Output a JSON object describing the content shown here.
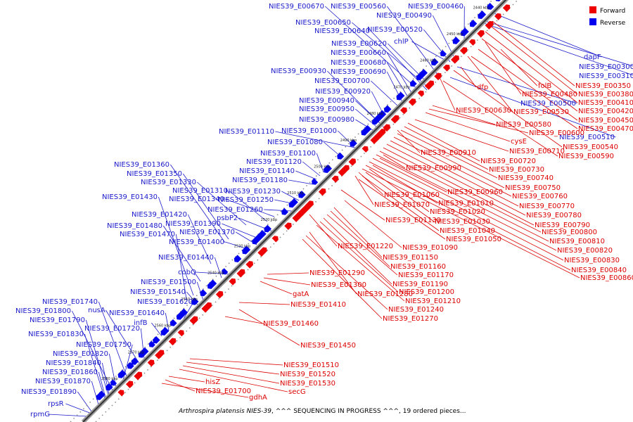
{
  "caption": {
    "organism": "Arthrospira platensis NIES-39",
    "status": ", ^^^ SEQUENCING IN PROGRESS ^^^, 19 ordered pieces..."
  },
  "legend": [
    {
      "label": "Forward",
      "color": "#ee0000"
    },
    {
      "label": "Reverse",
      "color": "#0000ee"
    }
  ],
  "kbp_ticks": [
    "2440 kbp",
    "2450 kbp",
    "2460 kbp",
    "2470 kbp",
    "2480 kbp",
    "2490 kbp",
    "2500 kbp",
    "2510 kbp",
    "2520 kbp",
    "2530 kbp",
    "2540 kbp",
    "2550 kbp",
    "2560 kbp",
    "2570 kbp",
    "2580 kbp"
  ],
  "reverse_labels": [
    "NIES39_E00670",
    "NIES39_E00560",
    "NIES39_E00490",
    "NIES39_E00460",
    "NIES39_E00650",
    "NIES39_E00640",
    "NIES39_E00520",
    "NIES39_E00620",
    "chlP",
    "NIES39_E00660",
    "NIES39_E00680",
    "NIES39_E00930",
    "NIES39_E00690",
    "NIES39_E00700",
    "NIES39_E00920",
    "NIES39_E00940",
    "NIES39_E00950",
    "NIES39_E00980",
    "NIES39_E01110",
    "NIES39_E01000",
    "NIES39_E01080",
    "NIES39_E01100",
    "NIES39_E01360",
    "NIES39_E01120",
    "NIES39_E01350",
    "NIES39_E01140",
    "NIES39_E01180",
    "NIES39_E01330",
    "NIES39_E01310",
    "NIES39_E01230",
    "NIES39_E01430",
    "NIES39_E01340",
    "NIES39_E01250",
    "NIES39_E01260",
    "NIES39_E01420",
    "psbP2",
    "NIES39_E01480",
    "NIES39_E01390",
    "NIES39_E01470",
    "NIES39_E01370",
    "NIES39_E01400",
    "NIES39_E01440",
    "cobQ",
    "NIES39_E01500",
    "NIES39_E01540",
    "NIES39_E01740",
    "NIES39_E01620",
    "nusA",
    "NIES39_E01800",
    "NIES39_E01640",
    "NIES39_E01790",
    "infB",
    "NIES39_E01720",
    "NIES39_E01830",
    "NIES39_E01750",
    "NIES39_E01820",
    "NIES39_E01840",
    "NIES39_E01860",
    "NIES39_E01870",
    "NIES39_E01890",
    "rpsR",
    "rpmG",
    "dapF",
    "NIES39_E00300",
    "NIES39_E00310",
    "NIES39_E00500",
    "NIES39_E00510"
  ],
  "forward_labels": [
    "folB",
    "NIES39_E00350",
    "NIES39_E00380",
    "NIES39_E00480",
    "dfp",
    "NIES39_E00410",
    "NIES39_E00420",
    "NIES39_E00530",
    "NIES39_E00630",
    "NIES39_E00450",
    "NIES39_E00580",
    "NIES39_E00470",
    "cysE",
    "NIES39_E00600",
    "NIES39_E00540",
    "NIES39_E00710",
    "NIES39_E00910",
    "NIES39_E00590",
    "NIES39_E00720",
    "NIES39_E00730",
    "NIES39_E00990",
    "NIES39_E00740",
    "NIES39_E00750",
    "NIES39_E00960",
    "NIES39_E00760",
    "NIES39_E01060",
    "NIES39_E01010",
    "NIES39_E00770",
    "NIES39_E01070",
    "NIES39_E01020",
    "NIES39_E00780",
    "NIES39_E01130",
    "NIES39_E01030",
    "NIES39_E00790",
    "NIES39_E01040",
    "NIES39_E00800",
    "NIES39_E01050",
    "NIES39_E00810",
    "NIES39_E01220",
    "NIES39_E01090",
    "NIES39_E00820",
    "NIES39_E01150",
    "NIES39_E00830",
    "NIES39_E01160",
    "NIES39_E00840",
    "NIES39_E01290",
    "NIES39_E01170",
    "NIES39_E00860",
    "NIES39_E01300",
    "NIES39_E01190",
    "gatA",
    "NIES39_E01280",
    "NIES39_E01200",
    "NIES39_E01410",
    "NIES39_E01210",
    "NIES39_E01240",
    "NIES39_E01270",
    "NIES39_E01460",
    "NIES39_E01450",
    "NIES39_E01510",
    "NIES39_E01520",
    "hisZ",
    "NIES39_E01530",
    "NIES39_E01700",
    "secG",
    "gdhA"
  ]
}
